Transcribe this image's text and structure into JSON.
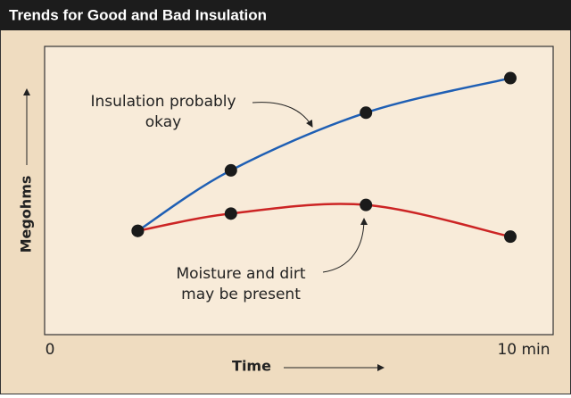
{
  "chart_data": {
    "type": "line",
    "title": "Trends for Good and Bad Insulation",
    "x_label": "Time",
    "y_label": "Megohms",
    "x": [
      2,
      4,
      6.9,
      10
    ],
    "xlim": [
      0,
      10
    ],
    "xticks": [
      0,
      {
        "value": 10,
        "label": "10 min"
      }
    ],
    "ylim": [
      0,
      10
    ],
    "series": [
      {
        "color": "#1f5fb4",
        "values": [
          3.6,
          5.7,
          7.7,
          8.9
        ]
      },
      {
        "color": "#cc2424",
        "values": [
          3.6,
          4.2,
          4.5,
          3.4
        ]
      }
    ],
    "annotations": [
      [
        "Insulation probably",
        "okay"
      ],
      [
        "Moisture and dirt",
        "may be present"
      ]
    ]
  }
}
